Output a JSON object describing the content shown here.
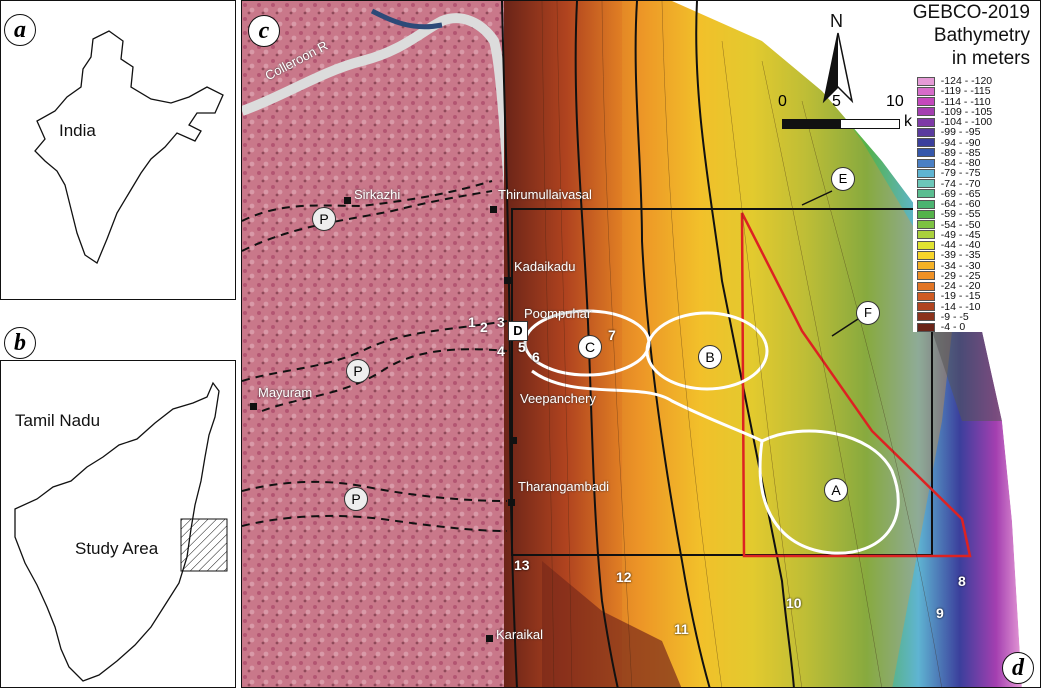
{
  "panels": {
    "a": "a",
    "b": "b",
    "c": "c",
    "d": "d"
  },
  "inset_a": {
    "label": "India"
  },
  "inset_b": {
    "state_label": "Tamil Nadu",
    "study_label": "Study Area"
  },
  "map": {
    "river_label": "Colleroon R",
    "towns": [
      "Sirkazhi",
      "Thirumullaivasal",
      "Kadaikadu",
      "Poompuhar",
      "Mayuram",
      "Veepanchery",
      "Tharangambadi",
      "Karaikal"
    ],
    "zones": [
      "A",
      "B",
      "C",
      "D"
    ],
    "paleochannel_marker": "P",
    "callouts": [
      "E",
      "F"
    ],
    "site_numbers": [
      "1",
      "2",
      "3",
      "4",
      "5",
      "6",
      "7",
      "8",
      "9",
      "10",
      "11",
      "12",
      "13"
    ]
  },
  "north_arrow": {
    "label": "N"
  },
  "scale_bar": {
    "ticks": [
      "0",
      "5",
      "10"
    ],
    "unit": "km"
  },
  "legend": {
    "title_lines": [
      "GEBCO-2019",
      "Bathymetry",
      "in meters"
    ],
    "classes": [
      {
        "label": "-124 - -120",
        "color": "#e59ad6"
      },
      {
        "label": "-119 - -115",
        "color": "#d66cc9"
      },
      {
        "label": "-114 - -110",
        "color": "#c448bc"
      },
      {
        "label": "-109 - -105",
        "color": "#a43fb0"
      },
      {
        "label": "-104 - -100",
        "color": "#7e3aa6"
      },
      {
        "label": "-99 - -95",
        "color": "#5a3b9e"
      },
      {
        "label": "-94 - -90",
        "color": "#3b3f9c"
      },
      {
        "label": "-89 - -85",
        "color": "#3557ab"
      },
      {
        "label": "-84 - -80",
        "color": "#4a7fc4"
      },
      {
        "label": "-79 - -75",
        "color": "#5fb4d2"
      },
      {
        "label": "-74 - -70",
        "color": "#6cc7b9"
      },
      {
        "label": "-69 - -65",
        "color": "#5abd90"
      },
      {
        "label": "-64 - -60",
        "color": "#4bb370"
      },
      {
        "label": "-59 - -55",
        "color": "#54b24a"
      },
      {
        "label": "-54 - -50",
        "color": "#7cc242"
      },
      {
        "label": "-49 - -45",
        "color": "#aad13c"
      },
      {
        "label": "-44 - -40",
        "color": "#e0e331"
      },
      {
        "label": "-39 - -35",
        "color": "#f7d52a"
      },
      {
        "label": "-34 - -30",
        "color": "#f5b226"
      },
      {
        "label": "-29 - -25",
        "color": "#ef9125"
      },
      {
        "label": "-24 - -20",
        "color": "#e27525"
      },
      {
        "label": "-19 - -15",
        "color": "#cf5a22"
      },
      {
        "label": "-14 - -10",
        "color": "#b0431f"
      },
      {
        "label": "-9 - -5",
        "color": "#8b321c"
      },
      {
        "label": "-4 - 0",
        "color": "#6a2418"
      }
    ]
  }
}
